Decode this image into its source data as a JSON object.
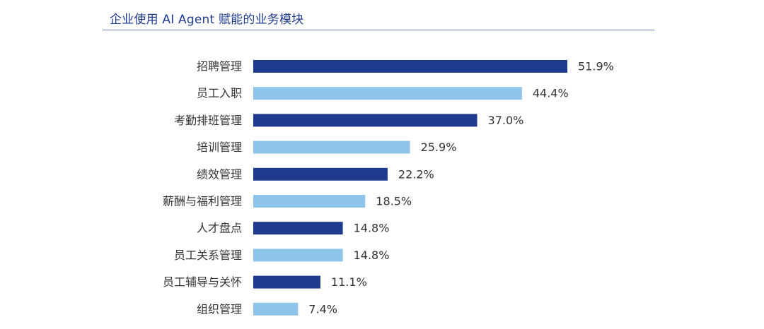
{
  "chart_data": {
    "type": "bar",
    "orientation": "horizontal",
    "title": "企业使用 AI Agent 赋能的业务模块",
    "categories": [
      "招聘管理",
      "员工入职",
      "考勤排班管理",
      "培训管理",
      "绩效管理",
      "薪酬与福利管理",
      "人才盘点",
      "员工关系管理",
      "员工辅导与关怀",
      "组织管理"
    ],
    "values": [
      51.9,
      44.4,
      37.0,
      25.9,
      22.2,
      18.5,
      14.8,
      14.8,
      11.1,
      7.4
    ],
    "value_labels": [
      "51.9%",
      "44.4%",
      "37.0%",
      "25.9%",
      "22.2%",
      "18.5%",
      "14.8%",
      "14.8%",
      "11.1%",
      "7.4%"
    ],
    "xlim": [
      0,
      51.9
    ],
    "colors": [
      "#1f3b8f",
      "#8ec4ea"
    ],
    "color_pattern": "alternating",
    "grid": false,
    "legend": "none"
  }
}
